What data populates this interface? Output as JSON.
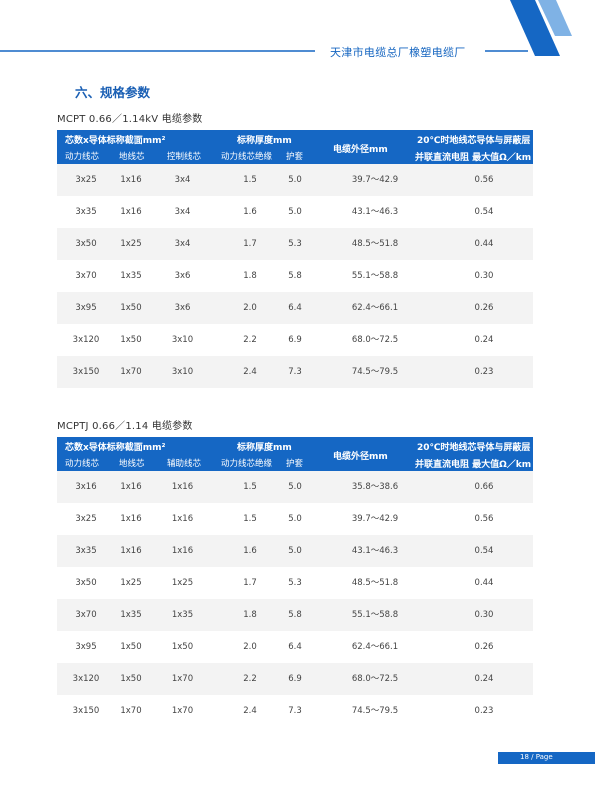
{
  "header": {
    "title": "天津市电缆总厂橡塑电缆厂"
  },
  "section": {
    "title": "六、规格参数"
  },
  "colors": {
    "primary": "#1567c4",
    "accent": "#1a5fb4",
    "row_alt": "#f3f3f3"
  },
  "tables": [
    {
      "caption": "MCPT 0.66／1.14kV 电缆参数",
      "headers": {
        "group1": "芯数x导体标称截面mm²",
        "power": "动力线芯",
        "ground": "地线芯",
        "third": "控制线芯",
        "group2": "标称厚度mm",
        "insulation": "动力线芯绝缘",
        "sheath": "护套",
        "diameter": "电缆外径mm",
        "resistance_l1": "20℃时地线芯导体与屏蔽层",
        "resistance_l2": "并联直流电阻 最大值Ω／km"
      },
      "rows": [
        [
          "3x25",
          "1x16",
          "3x4",
          "1.5",
          "5.0",
          "39.7～42.9",
          "0.56"
        ],
        [
          "3x35",
          "1x16",
          "3x4",
          "1.6",
          "5.0",
          "43.1～46.3",
          "0.54"
        ],
        [
          "3x50",
          "1x25",
          "3x4",
          "1.7",
          "5.3",
          "48.5～51.8",
          "0.44"
        ],
        [
          "3x70",
          "1x35",
          "3x6",
          "1.8",
          "5.8",
          "55.1～58.8",
          "0.30"
        ],
        [
          "3x95",
          "1x50",
          "3x6",
          "2.0",
          "6.4",
          "62.4～66.1",
          "0.26"
        ],
        [
          "3x120",
          "1x50",
          "3x10",
          "2.2",
          "6.9",
          "68.0～72.5",
          "0.24"
        ],
        [
          "3x150",
          "1x70",
          "3x10",
          "2.4",
          "7.3",
          "74.5～79.5",
          "0.23"
        ]
      ]
    },
    {
      "caption": "MCPTJ 0.66／1.14 电缆参数",
      "headers": {
        "group1": "芯数x导体标称截面mm²",
        "power": "动力线芯",
        "ground": "地线芯",
        "third": "辅助线芯",
        "group2": "标称厚度mm",
        "insulation": "动力线芯绝缘",
        "sheath": "护套",
        "diameter": "电缆外径mm",
        "resistance_l1": "20℃时地线芯导体与屏蔽层",
        "resistance_l2": "并联直流电阻 最大值Ω／km"
      },
      "rows": [
        [
          "3x16",
          "1x16",
          "1x16",
          "1.5",
          "5.0",
          "35.8～38.6",
          "0.66"
        ],
        [
          "3x25",
          "1x16",
          "1x16",
          "1.5",
          "5.0",
          "39.7～42.9",
          "0.56"
        ],
        [
          "3x35",
          "1x16",
          "1x16",
          "1.6",
          "5.0",
          "43.1～46.3",
          "0.54"
        ],
        [
          "3x50",
          "1x25",
          "1x25",
          "1.7",
          "5.3",
          "48.5～51.8",
          "0.44"
        ],
        [
          "3x70",
          "1x35",
          "1x35",
          "1.8",
          "5.8",
          "55.1～58.8",
          "0.30"
        ],
        [
          "3x95",
          "1x50",
          "1x50",
          "2.0",
          "6.4",
          "62.4～66.1",
          "0.26"
        ],
        [
          "3x120",
          "1x50",
          "1x70",
          "2.2",
          "6.9",
          "68.0～72.5",
          "0.24"
        ],
        [
          "3x150",
          "1x70",
          "1x70",
          "2.4",
          "7.3",
          "74.5～79.5",
          "0.23"
        ]
      ]
    }
  ],
  "footer": {
    "page": "18 / Page"
  }
}
